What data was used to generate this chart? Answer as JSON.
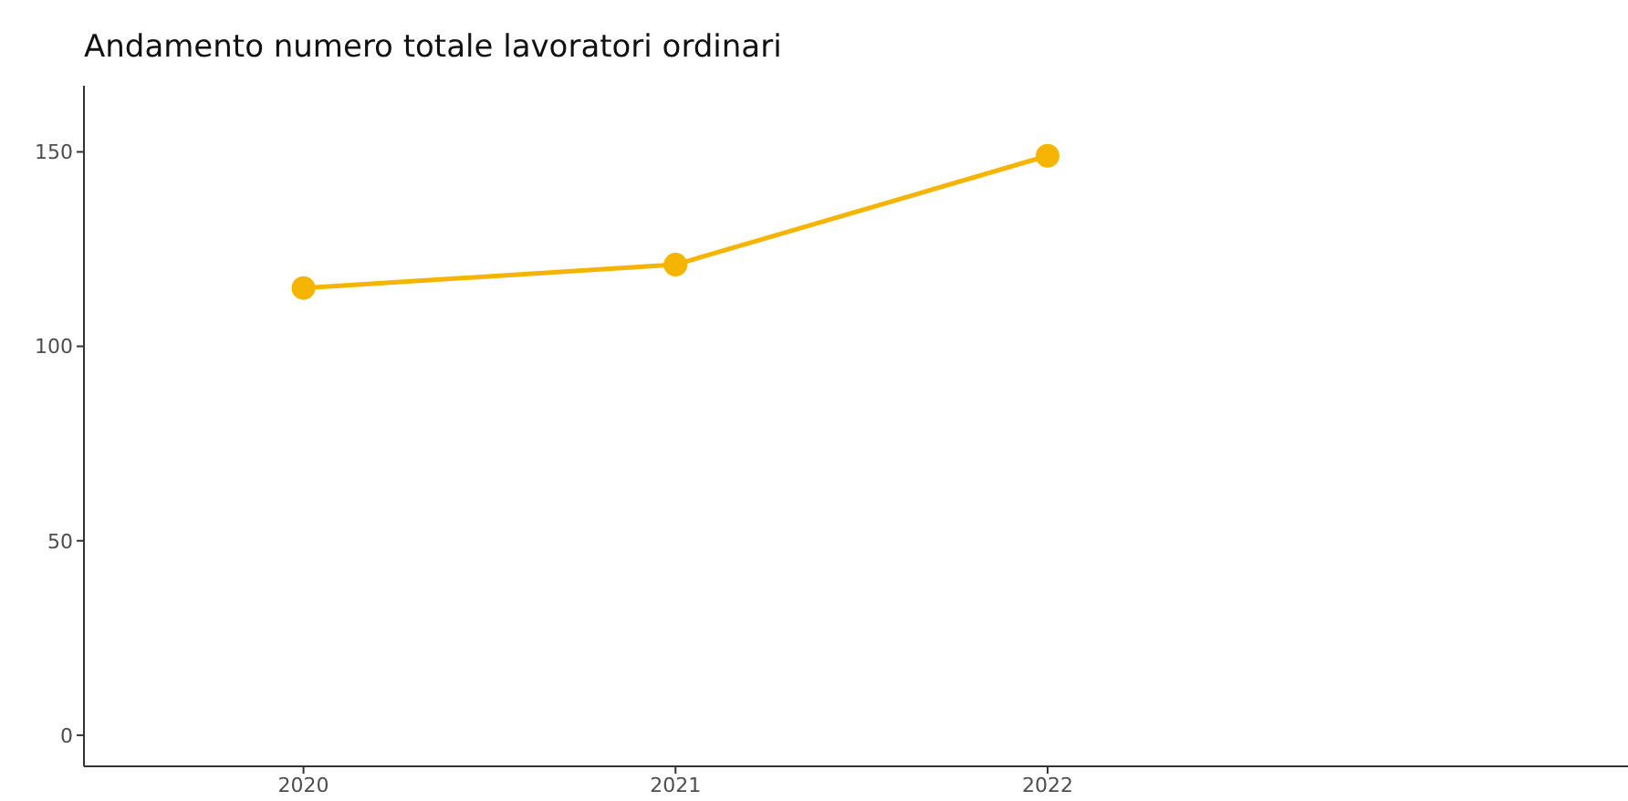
{
  "chart_data": {
    "type": "line",
    "title": "Andamento numero totale lavoratori ordinari",
    "x": [
      2020,
      2021,
      2022
    ],
    "series": [
      {
        "color": "#f5b400",
        "values": [
          115,
          121,
          149
        ]
      }
    ],
    "xlim": [
      2019.41,
      2023.56
    ],
    "xticks": [
      2020,
      2021,
      2022
    ],
    "ylim": [
      -8,
      167
    ],
    "yticks": [
      0,
      50,
      100,
      150
    ],
    "grid": false,
    "legend": false,
    "marker": "circle",
    "line_style": "solid"
  }
}
